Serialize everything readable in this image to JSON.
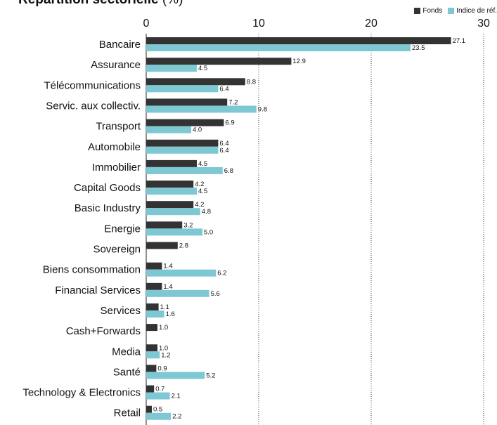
{
  "chart_data": {
    "type": "bar",
    "orientation": "horizontal",
    "title": "Répartition sectorielle",
    "title_unit": "(%)",
    "xlim": [
      0,
      30
    ],
    "xticks": [
      0,
      10,
      20,
      30
    ],
    "grid": "vertical-dotted",
    "legend_position": "top-right",
    "categories": [
      "Bancaire",
      "Assurance",
      "Télécommunications",
      "Servic. aux collectiv.",
      "Transport",
      "Automobile",
      "Immobilier",
      "Capital Goods",
      "Basic Industry",
      "Energie",
      "Sovereign",
      "Biens consommation",
      "Financial Services",
      "Services",
      "Cash+Forwards",
      "Media",
      "Santé",
      "Technology & Electronics",
      "Retail"
    ],
    "series": [
      {
        "name": "Fonds",
        "color": "#333333",
        "values": [
          27.1,
          12.9,
          8.8,
          7.2,
          6.9,
          6.4,
          4.5,
          4.2,
          4.2,
          3.2,
          2.8,
          1.4,
          1.4,
          1.1,
          1.0,
          1.0,
          0.9,
          0.7,
          0.5
        ]
      },
      {
        "name": "Indice de réf.",
        "color": "#7ec8d4",
        "values": [
          23.5,
          4.5,
          6.4,
          9.8,
          4.0,
          6.4,
          6.8,
          4.5,
          4.8,
          5.0,
          null,
          6.2,
          5.6,
          1.6,
          null,
          1.2,
          5.2,
          2.1,
          2.2
        ]
      }
    ]
  }
}
